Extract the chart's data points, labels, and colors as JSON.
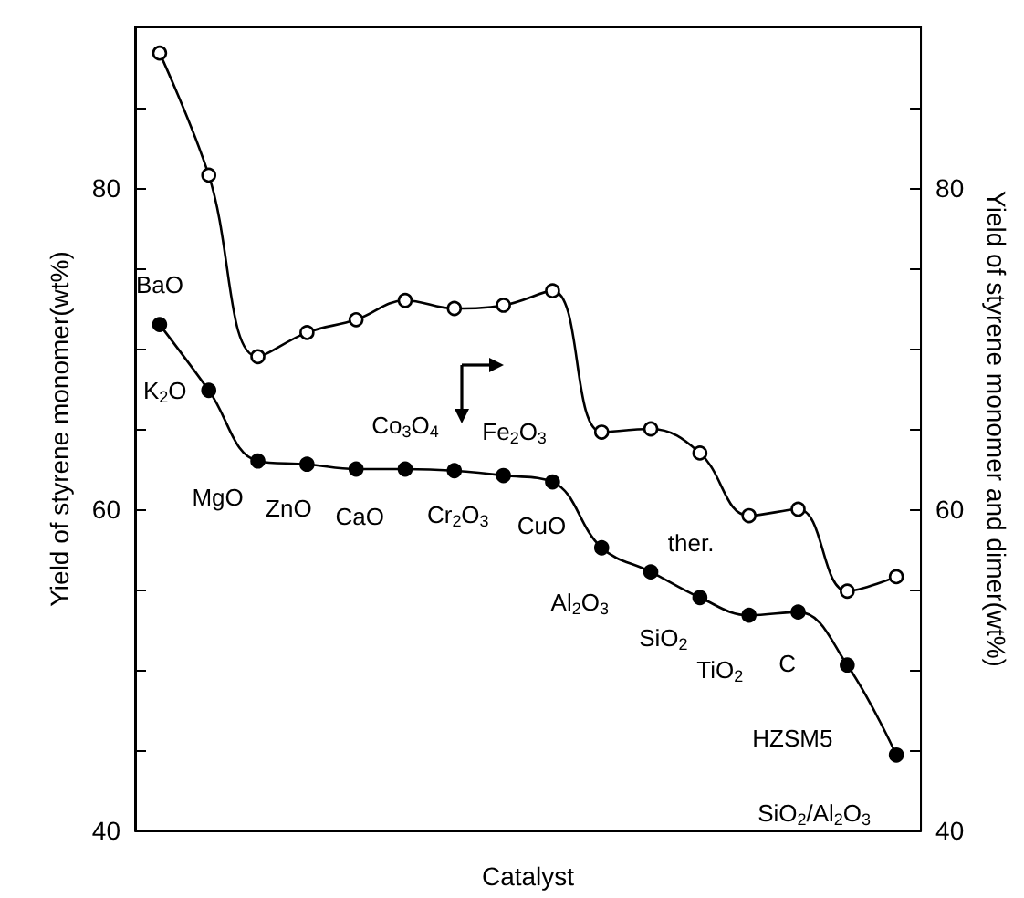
{
  "chart_data": {
    "type": "line",
    "xlabel": "Catalyst",
    "ylabel": "Yield of styrene monomer(wt%)",
    "y2label": "Yield of styrene monomer and dimer(wt%)",
    "categories": [
      null,
      null,
      null,
      null,
      null,
      null,
      null,
      null,
      null,
      null,
      null,
      null,
      null,
      null,
      null,
      null
    ],
    "series": [
      {
        "color": "#000000",
        "marker": "circle",
        "values": [
          71.5,
          67.4,
          63.0,
          62.8,
          62.5,
          62.5,
          62.4,
          62.1,
          61.7,
          57.6,
          56.1,
          54.5,
          53.4,
          53.6,
          50.3,
          44.7
        ]
      },
      {
        "color": "#000000",
        "marker": "circle",
        "axis": "y2",
        "values": [
          88.4,
          80.8,
          69.5,
          71.0,
          71.8,
          73.0,
          72.5,
          72.7,
          73.6,
          64.8,
          65.0,
          63.5,
          59.6,
          60.0,
          54.9,
          55.8
        ]
      }
    ],
    "ylim": [
      40,
      90
    ],
    "yticks": [
      40,
      {
        "value": 45,
        "label": null
      },
      {
        "value": 50,
        "label": null
      },
      {
        "value": 55,
        "label": null
      },
      60,
      {
        "value": 65,
        "label": null
      },
      {
        "value": 70,
        "label": null
      },
      {
        "value": 75,
        "label": null
      },
      80,
      {
        "value": 85,
        "label": null
      }
    ],
    "y2lim": [
      40,
      90
    ],
    "y2ticks": [
      40,
      {
        "value": 45,
        "label": null
      },
      {
        "value": 50,
        "label": null
      },
      {
        "value": 55,
        "label": null
      },
      60,
      {
        "value": 65,
        "label": null
      },
      {
        "value": 70,
        "label": null
      },
      {
        "value": 75,
        "label": null
      },
      80,
      {
        "value": 85,
        "label": null
      }
    ],
    "annotations": [
      "BaO",
      "K$_{2}$O",
      "MgO",
      "ZnO",
      "CaO",
      "Co$_{3}$O$_{4}$",
      "Cr$_{2}$O$_{3}$",
      "Fe$_{2}$O$_{3}$",
      "CuO",
      "Al$_{2}$O$_{3}$",
      "ther.",
      "SiO$_{2}$",
      "TiO$_{2}$",
      "C",
      "HZSM5",
      "SiO$_{2}$/Al$_{2}$O$_{3}$"
    ],
    "tick_labels": "y",
    "grid": false,
    "line_style": "solid"
  }
}
